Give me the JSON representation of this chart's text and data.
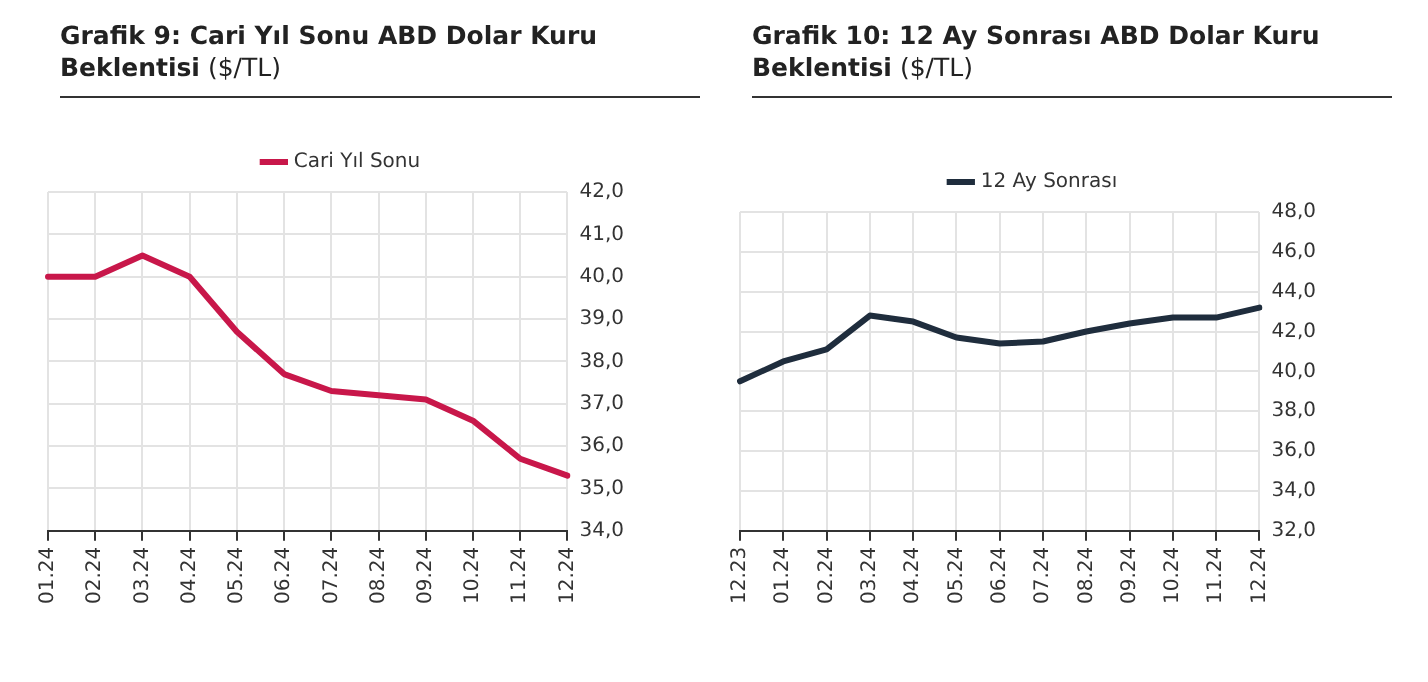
{
  "chart_data": [
    {
      "type": "line",
      "title": "Grafik 9: Cari Yıl Sonu ABD Dolar Kuru Beklentisi ($/TL)",
      "categories": [
        "01.24",
        "02.24",
        "03.24",
        "04.24",
        "05.24",
        "06.24",
        "07.24",
        "08.24",
        "09.24",
        "10.24",
        "11.24",
        "12.24"
      ],
      "series": [
        {
          "name": "Cari Yıl Sonu",
          "color": "#c8174a",
          "values": [
            40.0,
            40.0,
            40.5,
            40.0,
            38.7,
            37.7,
            37.3,
            37.2,
            37.1,
            36.6,
            35.7,
            35.3
          ]
        }
      ],
      "ylim": [
        34,
        42
      ],
      "yticks": [
        {
          "value": 34,
          "label": "34,0"
        },
        {
          "value": 35,
          "label": "35,0"
        },
        {
          "value": 36,
          "label": "36,0"
        },
        {
          "value": 37,
          "label": "37,0"
        },
        {
          "value": 38,
          "label": "38,0"
        },
        {
          "value": 39,
          "label": "39,0"
        },
        {
          "value": 40,
          "label": "40,0"
        },
        {
          "value": 41,
          "label": "41,0"
        },
        {
          "value": 42,
          "label": "42,0"
        }
      ],
      "grid": true,
      "legend": "top",
      "marker": "none",
      "line_style": "solid"
    },
    {
      "type": "line",
      "title": "Grafik 10: 12 Ay Sonrası ABD Dolar Kuru Beklentisi ($/TL)",
      "categories": [
        "12.23",
        "01.24",
        "02.24",
        "03.24",
        "04.24",
        "05.24",
        "06.24",
        "07.24",
        "08.24",
        "09.24",
        "10.24",
        "11.24",
        "12.24"
      ],
      "series": [
        {
          "name": "12 Ay Sonrası",
          "color": "#1f2d3d",
          "values": [
            39.5,
            40.5,
            41.1,
            42.8,
            42.5,
            41.7,
            41.4,
            41.5,
            42.0,
            42.4,
            42.7,
            42.7,
            43.2
          ]
        }
      ],
      "ylim": [
        32,
        48
      ],
      "yticks": [
        {
          "value": 32,
          "label": "32,0"
        },
        {
          "value": 34,
          "label": "34,0"
        },
        {
          "value": 36,
          "label": "36,0"
        },
        {
          "value": 38,
          "label": "38,0"
        },
        {
          "value": 40,
          "label": "40,0"
        },
        {
          "value": 42,
          "label": "42,0"
        },
        {
          "value": 44,
          "label": "44,0"
        },
        {
          "value": 46,
          "label": "46,0"
        },
        {
          "value": 48,
          "label": "48,0"
        }
      ],
      "grid": true,
      "legend": "top",
      "marker": "none",
      "line_style": "solid"
    }
  ]
}
